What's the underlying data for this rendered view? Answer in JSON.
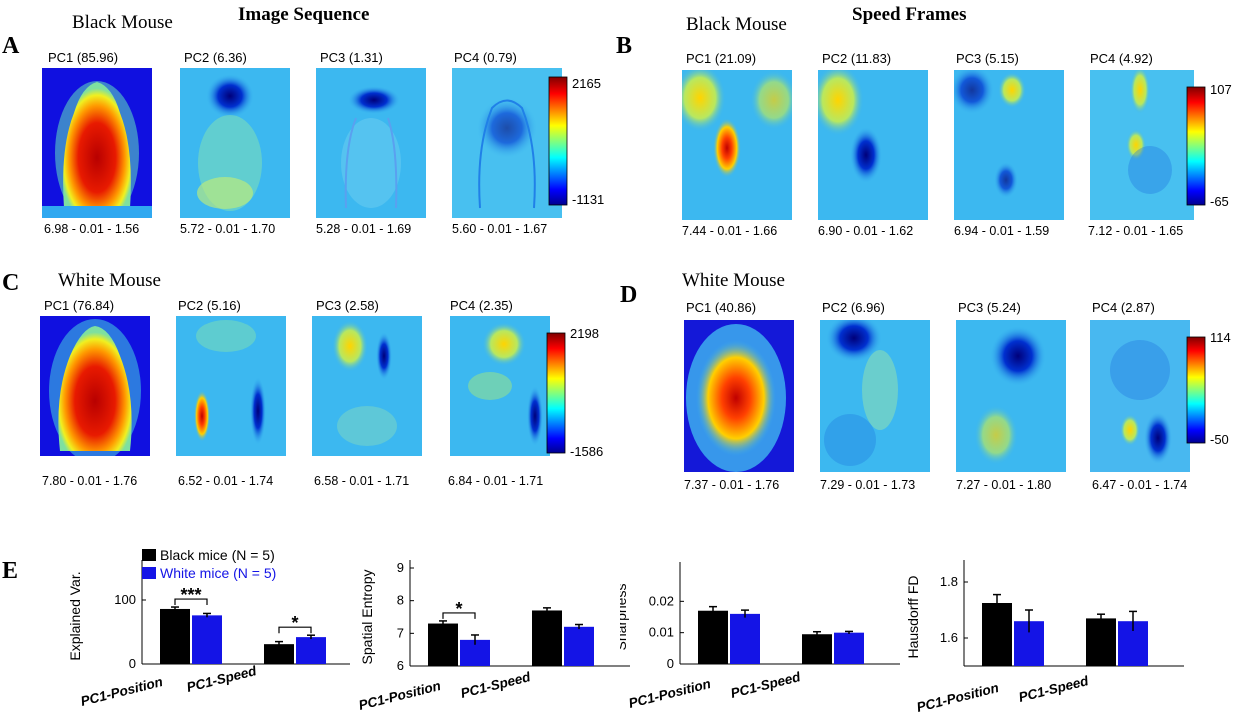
{
  "colors": {
    "black_series": "#000000",
    "white_series": "#1414e6",
    "panel_base": "#3cb8f0"
  },
  "panels": [
    {
      "letter": "A",
      "header": "Image Sequence",
      "mouse": "Black Mouse",
      "pcs": [
        "PC1 (85.96)",
        "PC2 (6.36)",
        "PC3 (1.31)",
        "PC4 (0.79)"
      ],
      "stats": [
        "6.98 - 0.01 - 1.56",
        "5.72 - 0.01 - 1.70",
        "5.28 - 0.01 - 1.69",
        "5.60 - 0.01 - 1.67"
      ],
      "colorbar": {
        "max": "2165",
        "min": "-1131"
      }
    },
    {
      "letter": "B",
      "header": "Speed Frames",
      "mouse": "Black Mouse",
      "pcs": [
        "PC1 (21.09)",
        "PC2 (11.83)",
        "PC3 (5.15)",
        "PC4 (4.92)"
      ],
      "stats": [
        "7.44 - 0.01 - 1.66",
        "6.90 - 0.01 - 1.62",
        "6.94 - 0.01 - 1.59",
        "7.12 - 0.01 - 1.65"
      ],
      "colorbar": {
        "max": "107",
        "min": "-65"
      }
    },
    {
      "letter": "C",
      "header": "",
      "mouse": "White Mouse",
      "pcs": [
        "PC1 (76.84)",
        "PC2 (5.16)",
        "PC3 (2.58)",
        "PC4 (2.35)"
      ],
      "stats": [
        "7.80 - 0.01 - 1.76",
        "6.52 - 0.01 - 1.74",
        "6.58 - 0.01 - 1.71",
        "6.84 - 0.01 - 1.71"
      ],
      "colorbar": {
        "max": "2198",
        "min": "-1586"
      }
    },
    {
      "letter": "D",
      "header": "",
      "mouse": "White Mouse",
      "pcs": [
        "PC1 (40.86)",
        "PC2 (6.96)",
        "PC3 (5.24)",
        "PC4 (2.87)"
      ],
      "stats": [
        "7.37 - 0.01 - 1.76",
        "7.29 - 0.01 - 1.73",
        "7.27 - 0.01 - 1.80",
        "6.47 - 0.01 - 1.74"
      ],
      "colorbar": {
        "max": "114",
        "min": "-50"
      }
    }
  ],
  "panel_e_letter": "E",
  "chart_data": [
    {
      "type": "bar",
      "ylabel": "Explained Var.",
      "categories": [
        "PC1-Position",
        "PC1-Speed"
      ],
      "yticks": [
        "0",
        "100"
      ],
      "ylim": [
        0,
        150
      ],
      "series": [
        {
          "name": "Black mice (N = 5)",
          "values": [
            86,
            31
          ],
          "errors": [
            3,
            4
          ]
        },
        {
          "name": "White mice (N = 5)",
          "values": [
            76,
            42
          ],
          "errors": [
            3,
            3
          ]
        }
      ],
      "legend": "top-left",
      "annotations": [
        {
          "category": "PC1-Position",
          "text": "***"
        },
        {
          "category": "PC1-Speed",
          "text": "*"
        }
      ]
    },
    {
      "type": "bar",
      "ylabel": "Spatial Entropy",
      "categories": [
        "PC1-Position",
        "PC1-Speed"
      ],
      "yticks": [
        "6",
        "7",
        "8",
        "9"
      ],
      "ylim": [
        6,
        9
      ],
      "series": [
        {
          "values": [
            7.3,
            7.7
          ],
          "errors": [
            0.08,
            0.08
          ]
        },
        {
          "values": [
            6.8,
            7.2
          ],
          "errors": [
            0.15,
            0.07
          ]
        }
      ],
      "annotations": [
        {
          "category": "PC1-Position",
          "text": "*"
        }
      ]
    },
    {
      "type": "bar",
      "ylabel": "Sharpness",
      "categories": [
        "PC1-Position",
        "PC1-Speed"
      ],
      "yticks": [
        "0",
        "0.01",
        "0.02"
      ],
      "ylim": [
        0,
        0.03
      ],
      "series": [
        {
          "values": [
            0.017,
            0.0095
          ],
          "errors": [
            0.0013,
            0.0008
          ]
        },
        {
          "values": [
            0.016,
            0.01
          ],
          "errors": [
            0.0012,
            0.0004
          ]
        }
      ],
      "annotations": []
    },
    {
      "type": "bar",
      "ylabel": "Hausdorff FD",
      "categories": [
        "PC1-Position",
        "PC1-Speed"
      ],
      "yticks": [
        "1.6",
        "1.8"
      ],
      "ylim": [
        1.5,
        1.85
      ],
      "series": [
        {
          "values": [
            1.725,
            1.67
          ],
          "errors": [
            0.03,
            0.015
          ]
        },
        {
          "values": [
            1.66,
            1.66
          ],
          "errors": [
            0.04,
            0.035
          ]
        }
      ],
      "annotations": []
    }
  ]
}
